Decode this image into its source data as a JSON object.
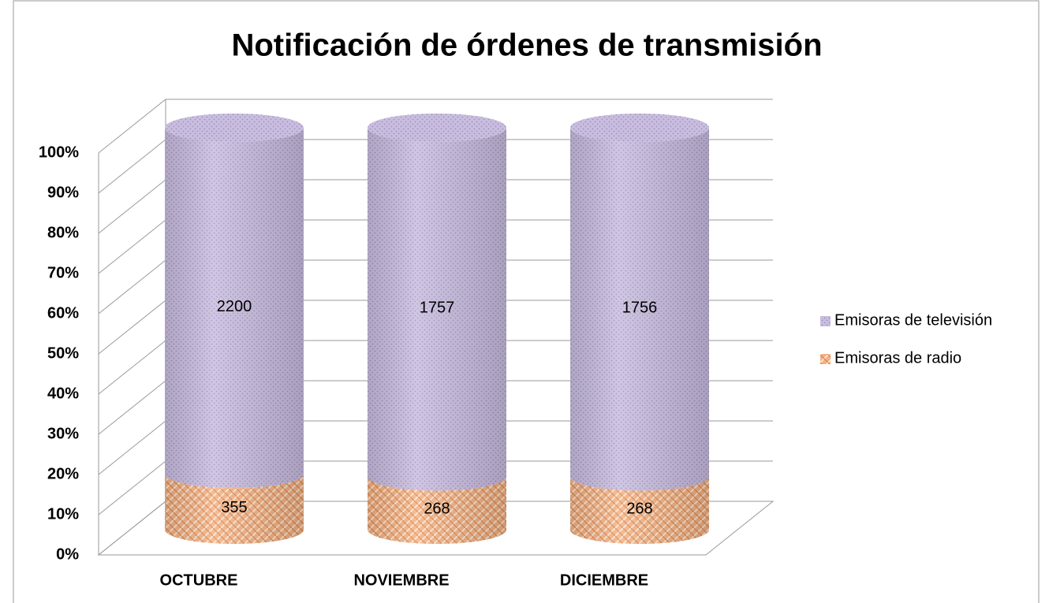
{
  "chart_data": {
    "type": "cylinder",
    "stacking": "percent",
    "title": "Notificación de órdenes de transmisión",
    "categories": [
      "OCTUBRE",
      "NOVIEMBRE",
      "DICIEMBRE"
    ],
    "series": [
      {
        "name": "Emisoras de radio",
        "color": "#f4b183",
        "values": [
          355,
          268,
          268
        ]
      },
      {
        "name": "Emisoras de televisión",
        "color": "#c9bde0",
        "values": [
          2200,
          1757,
          1756
        ]
      }
    ],
    "ylim": [
      0,
      100
    ],
    "yticks": [
      {
        "value": 0,
        "label": "0%"
      },
      {
        "value": 10,
        "label": "10%"
      },
      {
        "value": 20,
        "label": "20%"
      },
      {
        "value": 30,
        "label": "30%"
      },
      {
        "value": 40,
        "label": "40%"
      },
      {
        "value": 50,
        "label": "50%"
      },
      {
        "value": 60,
        "label": "60%"
      },
      {
        "value": 70,
        "label": "70%"
      },
      {
        "value": 80,
        "label": "80%"
      },
      {
        "value": 90,
        "label": "90%"
      },
      {
        "value": 100,
        "label": "100%"
      }
    ],
    "grid": true,
    "legend": "right"
  }
}
